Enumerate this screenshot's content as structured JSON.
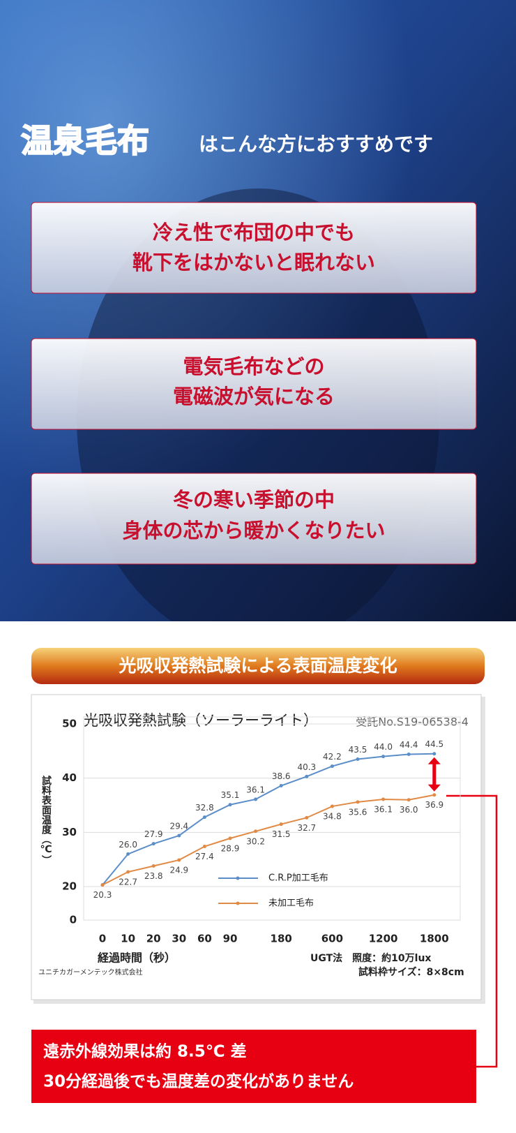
{
  "header": {
    "brand": "温泉毛布",
    "tagline": "はこんな方におすすめです"
  },
  "cards": [
    {
      "lines": [
        "冷え性で布団の中でも",
        "靴下をはかないと眠れない"
      ]
    },
    {
      "lines": [
        "電気毛布などの",
        "電磁波が気になる"
      ]
    },
    {
      "lines": [
        "冬の寒い季節の中",
        "身体の芯から暖かくなりたい"
      ]
    }
  ],
  "banner": "光吸収発熱試験による表面温度変化",
  "chart_data": {
    "type": "line",
    "title": "光吸収発熱試験（ソーラーライト）",
    "subtitle": "受託No.S19-06538-4",
    "y_label": "試料表面温度（℃）",
    "x_label": "経過時間（秒）",
    "categories": [
      "0",
      "10",
      "20",
      "30",
      "60",
      "90",
      null,
      "180",
      null,
      "600",
      null,
      "1200",
      null,
      "1800"
    ],
    "series": [
      {
        "name": "C.R.P加工毛布",
        "color": "#5b8ec9",
        "values": [
          20.3,
          26.0,
          27.9,
          29.4,
          32.8,
          35.1,
          36.1,
          38.6,
          40.3,
          42.2,
          43.5,
          44.0,
          44.4,
          44.5
        ],
        "value_labels": [
          null,
          "26.0",
          "27.9",
          "29.4",
          "32.8",
          "35.1",
          "36.1",
          "38.6",
          "40.3",
          "42.2",
          "43.5",
          "44.0",
          "44.4",
          "44.5"
        ]
      },
      {
        "name": "未加工毛布",
        "color": "#e08a45",
        "values": [
          20.3,
          22.7,
          23.8,
          24.9,
          27.4,
          28.9,
          30.2,
          31.5,
          32.7,
          34.8,
          35.6,
          36.1,
          36.0,
          36.9
        ],
        "value_labels": [
          "20.3",
          "22.7",
          "23.8",
          "24.9",
          "27.4",
          "28.9",
          "30.2",
          "31.5",
          "32.7",
          "34.8",
          "35.6",
          "36.1",
          "36.0",
          "36.9"
        ]
      }
    ],
    "ylim": [
      0,
      50
    ],
    "yticks": [
      0,
      20,
      30,
      40,
      50
    ],
    "axis_break": [
      0,
      20
    ],
    "grid": true,
    "notes": [
      "UGT法　照度：約10万lux",
      "試料枠サイズ：8×8cm",
      "ユニチカガーメンテック株式会社"
    ]
  },
  "note": {
    "lines": [
      "遠赤外線効果は約 8.5℃ 差",
      "30分経過後でも温度差の変化がありません"
    ]
  }
}
